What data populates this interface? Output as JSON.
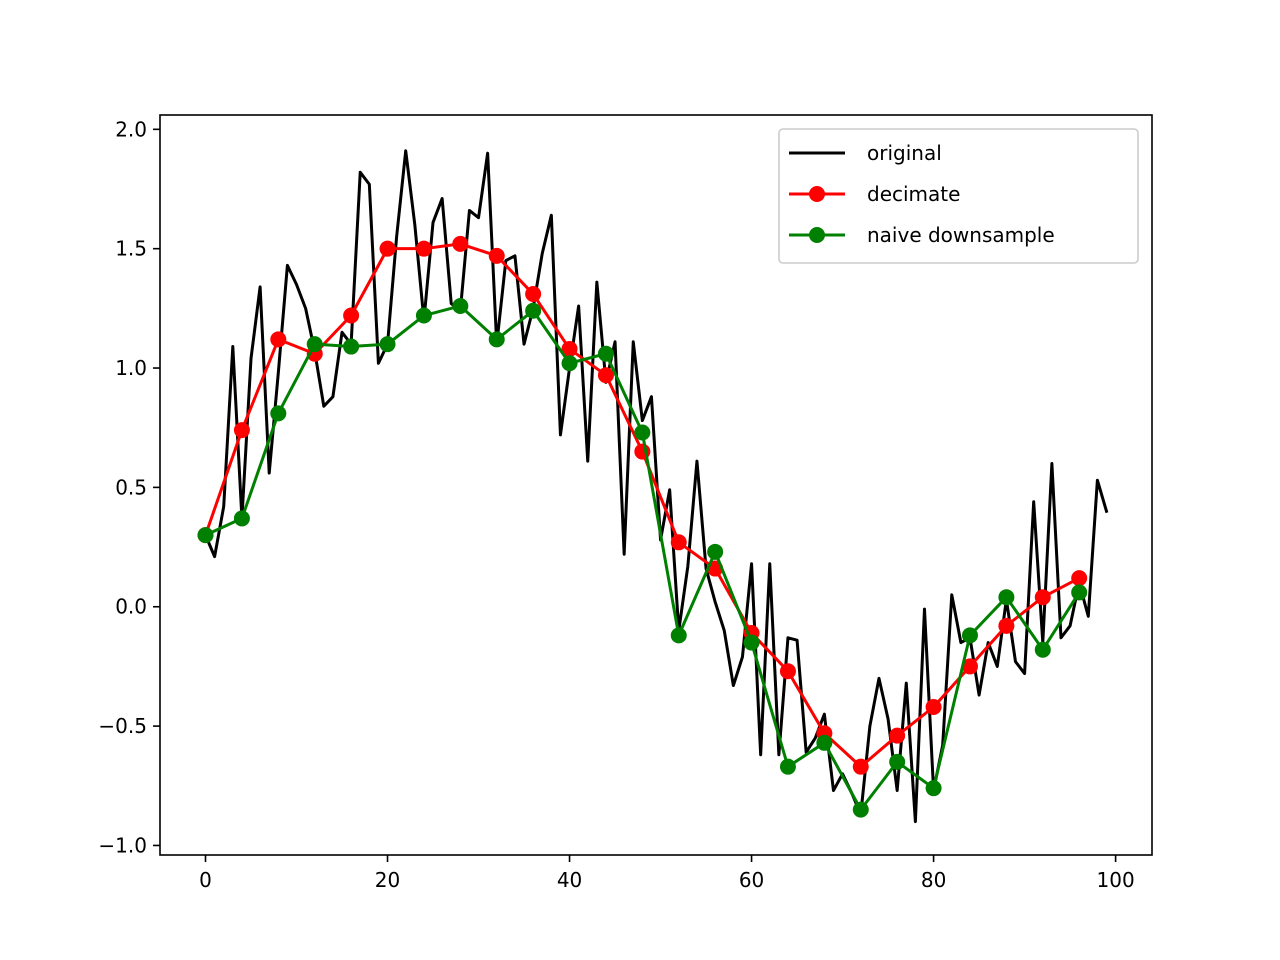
{
  "chart_data": {
    "type": "line",
    "title": "",
    "xlabel": "",
    "ylabel": "",
    "xlim": [
      -5,
      104
    ],
    "ylim": [
      -1.04,
      2.06
    ],
    "x_ticks": [
      0,
      20,
      40,
      60,
      80,
      100
    ],
    "y_ticks": [
      -1.0,
      -0.5,
      0.0,
      0.5,
      1.0,
      1.5,
      2.0
    ],
    "x_tick_labels": [
      "0",
      "20",
      "40",
      "60",
      "80",
      "100"
    ],
    "y_tick_labels": [
      "−1.0",
      "−0.5",
      "0.0",
      "0.5",
      "1.0",
      "1.5",
      "2.0"
    ],
    "grid": false,
    "legend_position": "top-right",
    "series": [
      {
        "name": "original",
        "color": "#000000",
        "marker": "none",
        "x": [
          0,
          1,
          2,
          3,
          4,
          5,
          6,
          7,
          8,
          9,
          10,
          11,
          12,
          13,
          14,
          15,
          16,
          17,
          18,
          19,
          20,
          21,
          22,
          23,
          24,
          25,
          26,
          27,
          28,
          29,
          30,
          31,
          32,
          33,
          34,
          35,
          36,
          37,
          38,
          39,
          40,
          41,
          42,
          43,
          44,
          45,
          46,
          47,
          48,
          49,
          50,
          51,
          52,
          53,
          54,
          55,
          56,
          57,
          58,
          59,
          60,
          61,
          62,
          63,
          64,
          65,
          66,
          67,
          68,
          69,
          70,
          71,
          72,
          73,
          74,
          75,
          76,
          77,
          78,
          79,
          80,
          81,
          82,
          83,
          84,
          85,
          86,
          87,
          88,
          89,
          90,
          91,
          92,
          93,
          94,
          95,
          96,
          97,
          98,
          99
        ],
        "y": [
          0.3,
          0.21,
          0.42,
          1.09,
          0.37,
          1.04,
          1.34,
          0.56,
          0.98,
          1.43,
          1.35,
          1.25,
          1.07,
          0.84,
          0.88,
          1.15,
          1.1,
          1.82,
          1.77,
          1.02,
          1.1,
          1.55,
          1.91,
          1.6,
          1.2,
          1.61,
          1.71,
          1.27,
          1.24,
          1.66,
          1.63,
          1.9,
          1.1,
          1.45,
          1.47,
          1.1,
          1.25,
          1.48,
          1.64,
          0.72,
          1.0,
          1.26,
          0.61,
          1.36,
          0.94,
          1.11,
          0.22,
          1.11,
          0.78,
          0.88,
          0.28,
          0.49,
          -0.1,
          0.17,
          0.61,
          0.16,
          0.02,
          -0.1,
          -0.33,
          -0.21,
          0.18,
          -0.62,
          0.18,
          -0.62,
          -0.13,
          -0.14,
          -0.61,
          -0.55,
          -0.45,
          -0.77,
          -0.7,
          -0.78,
          -0.87,
          -0.5,
          -0.3,
          -0.47,
          -0.77,
          -0.32,
          -0.9,
          -0.01,
          -0.77,
          -0.58,
          0.05,
          -0.15,
          -0.13,
          -0.37,
          -0.15,
          -0.25,
          0.03,
          -0.23,
          -0.28,
          0.44,
          -0.15,
          0.6,
          -0.13,
          -0.08,
          0.1,
          -0.04,
          0.53,
          0.4
        ]
      },
      {
        "name": "decimate",
        "color": "#ff0000",
        "marker": "circle",
        "x": [
          0,
          4,
          8,
          12,
          16,
          20,
          24,
          28,
          32,
          36,
          40,
          44,
          48,
          52,
          56,
          60,
          64,
          68,
          72,
          76,
          80,
          84,
          88,
          92,
          96
        ],
        "y": [
          0.3,
          0.74,
          1.12,
          1.06,
          1.22,
          1.5,
          1.5,
          1.52,
          1.47,
          1.31,
          1.08,
          0.97,
          0.65,
          0.27,
          0.16,
          -0.11,
          -0.27,
          -0.53,
          -0.67,
          -0.54,
          -0.42,
          -0.25,
          -0.08,
          0.04,
          0.12
        ]
      },
      {
        "name": "naive downsample",
        "color": "#008000",
        "marker": "circle",
        "x": [
          0,
          4,
          8,
          12,
          16,
          20,
          24,
          28,
          32,
          36,
          40,
          44,
          48,
          52,
          56,
          60,
          64,
          68,
          72,
          76,
          80,
          84,
          88,
          92,
          96
        ],
        "y": [
          0.3,
          0.37,
          0.81,
          1.1,
          1.09,
          1.1,
          1.22,
          1.26,
          1.12,
          1.24,
          1.02,
          1.06,
          0.73,
          -0.12,
          0.23,
          -0.15,
          -0.67,
          -0.57,
          -0.85,
          -0.65,
          -0.76,
          -0.12,
          0.04,
          -0.18,
          0.06
        ]
      }
    ]
  }
}
